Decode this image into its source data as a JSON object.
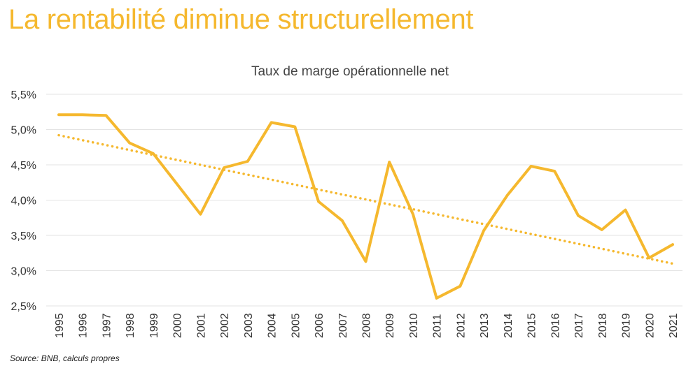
{
  "headline": "La rentabilité diminue structurellement",
  "source": "Source: BNB, calculs propres",
  "colors": {
    "accent": "#F5B82E",
    "grid": "#e3e3e3",
    "text": "#333333"
  },
  "chart_data": {
    "type": "line",
    "title": "Taux de marge opérationnelle net",
    "xlabel": "",
    "ylabel": "",
    "ylim": [
      0.025,
      0.055
    ],
    "y_ticks": [
      {
        "value": 0.025,
        "label": "2,5%"
      },
      {
        "value": 0.03,
        "label": "3,0%"
      },
      {
        "value": 0.035,
        "label": "3,5%"
      },
      {
        "value": 0.04,
        "label": "4,0%"
      },
      {
        "value": 0.045,
        "label": "4,5%"
      },
      {
        "value": 0.05,
        "label": "5,0%"
      },
      {
        "value": 0.055,
        "label": "5,5%"
      }
    ],
    "grid": true,
    "legend": "none",
    "categories": [
      "1995",
      "1996",
      "1997",
      "1998",
      "1999",
      "2000",
      "2001",
      "2002",
      "2003",
      "2004",
      "2005",
      "2006",
      "2007",
      "2008",
      "2009",
      "2010",
      "2011",
      "2012",
      "2013",
      "2014",
      "2015",
      "2016",
      "2017",
      "2018",
      "2019",
      "2020",
      "2021"
    ],
    "series": [
      {
        "name": "Taux de marge opérationnelle net",
        "style": "solid",
        "values": [
          0.0521,
          0.0521,
          0.052,
          0.0481,
          0.0466,
          0.0423,
          0.038,
          0.0446,
          0.0455,
          0.051,
          0.0504,
          0.0398,
          0.0371,
          0.0313,
          0.0454,
          0.038,
          0.0261,
          0.0278,
          0.0357,
          0.0407,
          0.0448,
          0.0441,
          0.0378,
          0.0358,
          0.0386,
          0.0318,
          0.0337
        ]
      },
      {
        "name": "Tendance",
        "style": "dotted",
        "values": [
          0.0492,
          0.0485,
          0.0478,
          0.0471,
          0.0464,
          0.0457,
          0.045,
          0.0443,
          0.0436,
          0.0429,
          0.0422,
          0.0415,
          0.0408,
          0.0401,
          0.0394,
          0.0387,
          0.038,
          0.0373,
          0.0366,
          0.0359,
          0.0352,
          0.0345,
          0.0338,
          0.0331,
          0.0324,
          0.0317,
          0.031
        ]
      }
    ]
  }
}
